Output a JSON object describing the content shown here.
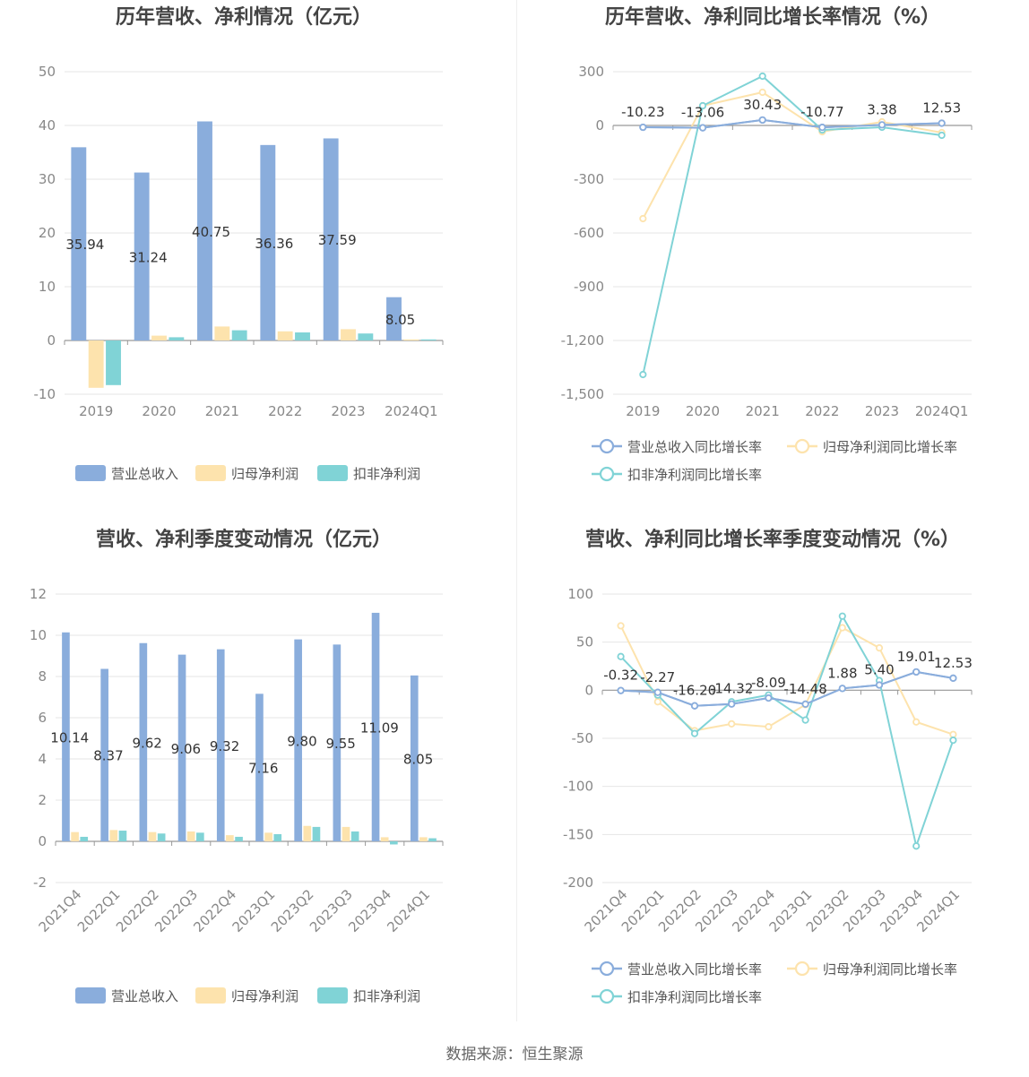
{
  "colors": {
    "revenue": "#8aaddc",
    "parent_profit": "#fde3ad",
    "deducted_profit": "#80d3d6",
    "grid": "#e6e6e6",
    "axis": "#999999"
  },
  "chart_data": [
    {
      "type": "bar",
      "title": "历年营收、净利情况（亿元）",
      "categories": [
        "2019",
        "2020",
        "2021",
        "2022",
        "2023",
        "2024Q1"
      ],
      "series": [
        {
          "name": "营业总收入",
          "values": [
            35.94,
            31.24,
            40.75,
            36.36,
            37.59,
            8.05
          ],
          "labels": [
            "35.94",
            "31.24",
            "40.75",
            "36.36",
            "37.59",
            "8.05"
          ]
        },
        {
          "name": "归母净利润",
          "values": [
            -8.8,
            0.9,
            2.6,
            1.7,
            2.1,
            0.2
          ]
        },
        {
          "name": "扣非净利润",
          "values": [
            -8.3,
            0.6,
            1.9,
            1.5,
            1.3,
            0.2
          ]
        }
      ],
      "ylim": [
        -10,
        50
      ],
      "yticks": [
        -10,
        0,
        10,
        20,
        30,
        40,
        50
      ],
      "legend": "bottom"
    },
    {
      "type": "line",
      "title": "历年营收、净利同比增长率情况（%）",
      "categories": [
        "2019",
        "2020",
        "2021",
        "2022",
        "2023",
        "2024Q1"
      ],
      "series": [
        {
          "name": "营业总收入同比增长率",
          "values": [
            -10.23,
            -13.06,
            30.43,
            -10.77,
            3.38,
            12.53
          ],
          "labels": [
            "-10.23",
            "-13.06",
            "30.43",
            "-10.77",
            "3.38",
            "12.53"
          ]
        },
        {
          "name": "归母净利润同比增长率",
          "values": [
            -520,
            110,
            185,
            -35,
            20,
            -40
          ]
        },
        {
          "name": "扣非净利润同比增长率",
          "values": [
            -1390,
            110,
            275,
            -25,
            -10,
            -55
          ]
        }
      ],
      "ylim": [
        -1500,
        300
      ],
      "yticks": [
        -1500,
        -1200,
        -900,
        -600,
        -300,
        0,
        300
      ],
      "ytick_labels": [
        "-1,500",
        "-1,200",
        "-900",
        "-600",
        "-300",
        "0",
        "300"
      ],
      "legend": "bottom"
    },
    {
      "type": "bar",
      "title": "营收、净利季度变动情况（亿元）",
      "categories": [
        "2021Q4",
        "2022Q1",
        "2022Q2",
        "2022Q3",
        "2022Q4",
        "2023Q1",
        "2023Q2",
        "2023Q3",
        "2023Q4",
        "2024Q1"
      ],
      "series": [
        {
          "name": "营业总收入",
          "values": [
            10.14,
            8.37,
            9.62,
            9.06,
            9.32,
            7.16,
            9.8,
            9.55,
            11.09,
            8.05
          ],
          "labels": [
            "10.14",
            "8.37",
            "9.62",
            "9.06",
            "9.32",
            "7.16",
            "9.80",
            "9.55",
            "11.09",
            "8.05"
          ]
        },
        {
          "name": "归母净利润",
          "values": [
            0.45,
            0.55,
            0.45,
            0.48,
            0.3,
            0.42,
            0.75,
            0.7,
            0.2,
            0.2
          ]
        },
        {
          "name": "扣非净利润",
          "values": [
            0.22,
            0.52,
            0.38,
            0.42,
            0.22,
            0.35,
            0.7,
            0.48,
            -0.15,
            0.15
          ]
        }
      ],
      "ylim": [
        -2,
        12
      ],
      "yticks": [
        -2,
        0,
        2,
        4,
        6,
        8,
        10,
        12
      ],
      "legend": "bottom"
    },
    {
      "type": "line",
      "title": "营收、净利同比增长率季度变动情况（%）",
      "categories": [
        "2021Q4",
        "2022Q1",
        "2022Q2",
        "2022Q3",
        "2022Q4",
        "2023Q1",
        "2023Q2",
        "2023Q3",
        "2023Q4",
        "2024Q1"
      ],
      "series": [
        {
          "name": "营业总收入同比增长率",
          "values": [
            -0.32,
            -2.27,
            -16.2,
            -14.32,
            -8.09,
            -14.48,
            1.88,
            5.4,
            19.01,
            12.53
          ],
          "labels": [
            "-0.32",
            "-2.27",
            "-16.20",
            "-14.32",
            "-8.09",
            "-14.48",
            "1.88",
            "5.40",
            "19.01",
            "12.53"
          ]
        },
        {
          "name": "归母净利润同比增长率",
          "values": [
            67,
            -12,
            -42,
            -35,
            -38,
            -15,
            65,
            44,
            -33,
            -46
          ]
        },
        {
          "name": "扣非净利润同比增长率",
          "values": [
            35,
            -5,
            -45,
            -12,
            -5,
            -31,
            77,
            10,
            -162,
            -52
          ]
        }
      ],
      "ylim": [
        -200,
        100
      ],
      "yticks": [
        -200,
        -150,
        -100,
        -50,
        0,
        50,
        100
      ],
      "legend": "bottom"
    }
  ],
  "footer": {
    "source": "数据来源：恒生聚源"
  }
}
